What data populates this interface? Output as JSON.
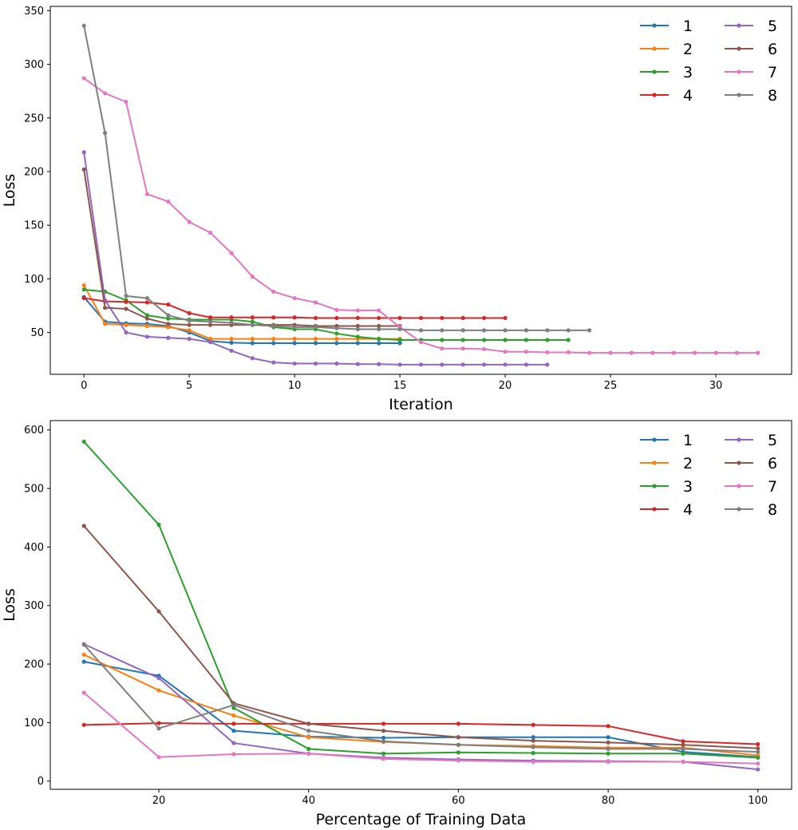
{
  "figure_title": "",
  "chart_data": [
    {
      "type": "line",
      "title": "",
      "xlabel": "Iteration",
      "ylabel": "Loss",
      "xlim": [
        -1.6,
        33.6
      ],
      "ylim": [
        11,
        354
      ],
      "xticks": [
        0,
        5,
        10,
        15,
        20,
        25,
        30
      ],
      "yticks": [
        50,
        100,
        150,
        200,
        250,
        300,
        350
      ],
      "legend": {
        "position": "top-right",
        "columns": 2
      },
      "series": [
        {
          "name": "1",
          "color": "#1f77b4",
          "x": [
            0,
            1,
            2,
            3,
            4,
            5,
            6,
            7,
            8,
            9,
            10,
            11,
            12,
            13,
            14,
            15
          ],
          "y": [
            83,
            60,
            58.5,
            58,
            56,
            50,
            42,
            40.5,
            40,
            40,
            40,
            40,
            40,
            40,
            40,
            40
          ]
        },
        {
          "name": "2",
          "color": "#ff7f0e",
          "x": [
            0,
            1,
            2,
            3,
            4,
            5,
            6,
            7,
            8,
            9,
            10,
            11,
            12,
            13,
            14,
            15
          ],
          "y": [
            94,
            58,
            57,
            56,
            55,
            52,
            44,
            44,
            44,
            44,
            44,
            44,
            44,
            44,
            44,
            44
          ]
        },
        {
          "name": "3",
          "color": "#2ca02c",
          "x": [
            0,
            1,
            2,
            3,
            4,
            5,
            6,
            7,
            8,
            9,
            10,
            11,
            12,
            13,
            14,
            15,
            16,
            17,
            18,
            19,
            20,
            21,
            22,
            23
          ],
          "y": [
            90,
            88,
            80,
            66,
            63,
            62,
            62,
            62,
            60,
            55,
            53,
            53,
            49,
            46,
            44,
            43,
            43,
            43,
            43,
            43,
            43,
            43,
            43,
            43
          ]
        },
        {
          "name": "4",
          "color": "#d62728",
          "x": [
            0,
            1,
            2,
            3,
            4,
            5,
            6,
            7,
            8,
            9,
            10,
            11,
            12,
            13,
            14,
            15,
            16,
            17,
            18,
            19,
            20
          ],
          "y": [
            82,
            79,
            78.5,
            78,
            76,
            68,
            64,
            64,
            64,
            64,
            64,
            63.5,
            63.5,
            63.5,
            63.5,
            63.5,
            63.5,
            63.5,
            63.5,
            63.5,
            63.5
          ]
        },
        {
          "name": "5",
          "color": "#9467bd",
          "x": [
            0,
            1,
            2,
            3,
            4,
            5,
            6,
            7,
            8,
            9,
            10,
            11,
            12,
            13,
            14,
            15,
            16,
            17,
            18,
            19,
            20,
            21,
            22
          ],
          "y": [
            218,
            80,
            50,
            46,
            45,
            44,
            41,
            33,
            26,
            22,
            21,
            21,
            21,
            20.5,
            20.5,
            20,
            20,
            20,
            20,
            20,
            20,
            20,
            20
          ]
        },
        {
          "name": "6",
          "color": "#8c564b",
          "x": [
            0,
            1,
            2,
            3,
            4,
            5,
            6,
            7,
            8,
            9,
            10,
            11,
            12,
            13,
            14,
            15
          ],
          "y": [
            202,
            73,
            72,
            63,
            58,
            57,
            57,
            57,
            57,
            57,
            57,
            56,
            56,
            56,
            56,
            56
          ]
        },
        {
          "name": "7",
          "color": "#e377c2",
          "x": [
            0,
            1,
            2,
            3,
            4,
            5,
            6,
            7,
            8,
            9,
            10,
            11,
            12,
            13,
            14,
            15,
            16,
            17,
            18,
            19,
            20,
            21,
            22,
            23,
            24,
            25,
            26,
            27,
            28,
            29,
            30,
            31,
            32
          ],
          "y": [
            287,
            273,
            265,
            179,
            172,
            153,
            143,
            124,
            102,
            88,
            82,
            78,
            71,
            70.5,
            70.5,
            55,
            41,
            35,
            35,
            34.5,
            32,
            32,
            31.5,
            31.5,
            31,
            31,
            31,
            31,
            31,
            31,
            31,
            31,
            31
          ]
        },
        {
          "name": "8",
          "color": "#7f7f7f",
          "x": [
            0,
            1,
            2,
            3,
            4,
            5,
            6,
            7,
            8,
            9,
            10,
            11,
            12,
            13,
            14,
            15,
            16,
            17,
            18,
            19,
            20,
            21,
            22,
            23,
            24
          ],
          "y": [
            336,
            236,
            84,
            82,
            66,
            61,
            60,
            59,
            57,
            56,
            55,
            55,
            54,
            53,
            53,
            53,
            52,
            52,
            52,
            52,
            52,
            52,
            52,
            52,
            52
          ]
        }
      ]
    },
    {
      "type": "line",
      "title": "",
      "xlabel": "Percentage of Training Data",
      "ylabel": "Loss",
      "xlim": [
        5.5,
        104.5
      ],
      "ylim": [
        -14,
        616
      ],
      "xticks": [
        20,
        40,
        60,
        80,
        100
      ],
      "yticks": [
        0,
        100,
        200,
        300,
        400,
        500,
        600
      ],
      "legend": {
        "position": "top-right",
        "columns": 2
      },
      "series": [
        {
          "name": "1",
          "color": "#1f77b4",
          "x": [
            10,
            20,
            30,
            40,
            50,
            60,
            70,
            80,
            90,
            100
          ],
          "y": [
            204,
            180,
            86,
            76,
            74,
            75,
            75,
            75,
            50,
            41
          ]
        },
        {
          "name": "2",
          "color": "#ff7f0e",
          "x": [
            10,
            20,
            30,
            40,
            50,
            60,
            70,
            80,
            90,
            100
          ],
          "y": [
            216,
            155,
            112,
            75,
            67,
            62,
            60,
            57,
            57,
            44
          ]
        },
        {
          "name": "3",
          "color": "#2ca02c",
          "x": [
            10,
            20,
            30,
            40,
            50,
            60,
            70,
            80,
            90,
            100
          ],
          "y": [
            580,
            438,
            125,
            55,
            47,
            49,
            48,
            47,
            47,
            40
          ]
        },
        {
          "name": "4",
          "color": "#d62728",
          "x": [
            10,
            20,
            30,
            40,
            50,
            60,
            70,
            80,
            90,
            100
          ],
          "y": [
            96,
            99,
            98,
            98,
            98,
            98,
            96,
            94,
            68,
            63
          ]
        },
        {
          "name": "5",
          "color": "#9467bd",
          "x": [
            10,
            20,
            30,
            40,
            50,
            60,
            70,
            80,
            90,
            100
          ],
          "y": [
            234,
            176,
            65,
            47,
            40,
            37,
            35,
            34,
            33,
            20
          ]
        },
        {
          "name": "6",
          "color": "#8c564b",
          "x": [
            10,
            20,
            30,
            40,
            50,
            60,
            70,
            80,
            90,
            100
          ],
          "y": [
            436,
            290,
            133,
            98,
            86,
            75,
            69,
            66,
            62,
            56
          ]
        },
        {
          "name": "7",
          "color": "#e377c2",
          "x": [
            10,
            20,
            30,
            40,
            50,
            60,
            70,
            80,
            90,
            100
          ],
          "y": [
            151,
            41,
            46,
            47,
            38,
            35,
            33,
            33,
            33,
            30
          ]
        },
        {
          "name": "8",
          "color": "#7f7f7f",
          "x": [
            10,
            20,
            30,
            40,
            50,
            60,
            70,
            80,
            90,
            100
          ],
          "y": [
            233,
            90,
            130,
            86,
            68,
            62,
            58,
            55,
            55,
            50
          ]
        }
      ]
    }
  ]
}
